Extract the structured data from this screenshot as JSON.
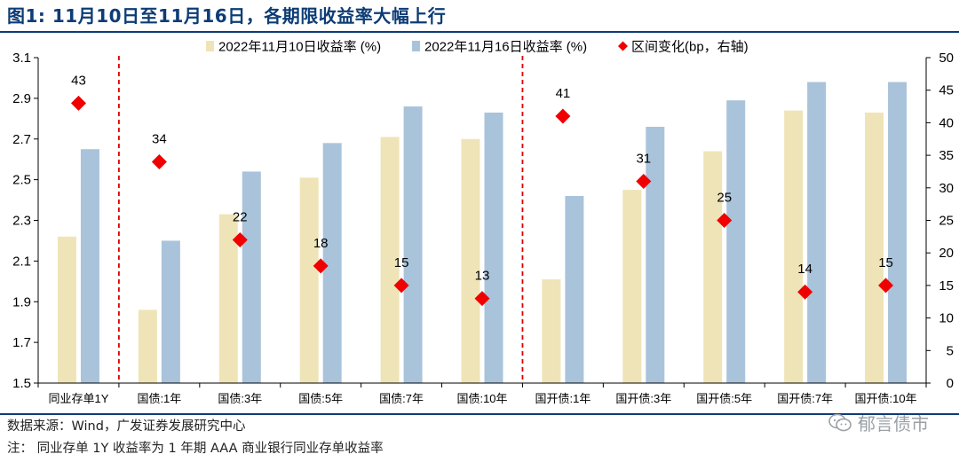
{
  "header": {
    "title": "图1:  11月10日至11月16日，各期限收益率大幅上行"
  },
  "footer": {
    "source": "数据来源：Wind，广发证券发展研究中心",
    "note": "注：  同业存单 1Y 收益率为 1 年期 AAA 商业银行同业存单收益率",
    "watermark": "郁言债市"
  },
  "colors": {
    "series1": "#efe4b7",
    "series2": "#a9c3db",
    "marker": "#f00000",
    "divider": "#e00000",
    "title": "#0d3c76"
  },
  "chart_data": {
    "type": "bar",
    "categories": [
      "同业存单1Y",
      "国债:1年",
      "国债:3年",
      "国债:5年",
      "国债:7年",
      "国债:10年",
      "国开债:1年",
      "国开债:3年",
      "国开债:5年",
      "国开债:7年",
      "国开债:10年"
    ],
    "series": [
      {
        "name": "2022年11月10日收益率 (%)",
        "type": "bar",
        "axis": "left",
        "values": [
          2.22,
          1.86,
          2.33,
          2.51,
          2.71,
          2.7,
          2.01,
          2.45,
          2.64,
          2.84,
          2.83
        ]
      },
      {
        "name": "2022年11月16日收益率 (%)",
        "type": "bar",
        "axis": "left",
        "values": [
          2.65,
          2.2,
          2.54,
          2.68,
          2.86,
          2.83,
          2.42,
          2.76,
          2.89,
          2.98,
          2.98
        ]
      },
      {
        "name": "区间变化(bp，右轴)",
        "type": "scatter",
        "axis": "right",
        "values": [
          43,
          34,
          22,
          18,
          15,
          13,
          41,
          31,
          25,
          14,
          15
        ]
      }
    ],
    "ylim": [
      1.5,
      3.1
    ],
    "yticks": [
      "1.5",
      "1.7",
      "1.9",
      "2.1",
      "2.3",
      "2.5",
      "2.7",
      "2.9",
      "3.1"
    ],
    "y2lim": [
      0,
      50
    ],
    "y2ticks": [
      "0",
      "5",
      "10",
      "15",
      "20",
      "25",
      "30",
      "35",
      "40",
      "45",
      "50"
    ],
    "dividers_after_index": [
      0,
      5
    ],
    "legend_position": "top-center"
  }
}
